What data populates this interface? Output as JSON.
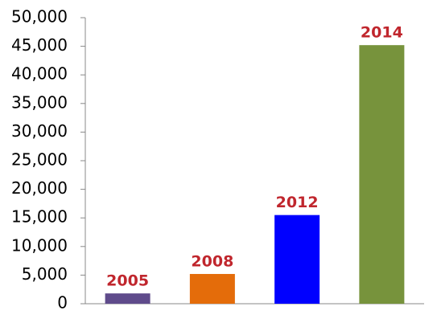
{
  "chart_data": {
    "type": "bar",
    "categories": [
      "2005",
      "2008",
      "2012",
      "2014"
    ],
    "values": [
      1800,
      5200,
      15500,
      45200
    ],
    "colors": [
      "#5f4b8b",
      "#e46c0a",
      "#0000ff",
      "#77933c"
    ],
    "ylim": [
      0,
      50000
    ],
    "yticks": [
      0,
      {
        "value": 5000,
        "label": "5,000"
      },
      {
        "value": 10000,
        "label": "10,000"
      },
      {
        "value": 15000,
        "label": "15,000"
      },
      {
        "value": 20000,
        "label": "20,000"
      },
      {
        "value": 25000,
        "label": "25,000"
      },
      {
        "value": 30000,
        "label": "30,000"
      },
      {
        "value": 35000,
        "label": "35,000"
      },
      {
        "value": 40000,
        "label": "40,000"
      },
      {
        "value": 45000,
        "label": "45,000"
      },
      {
        "value": 50000,
        "label": "50,000"
      }
    ],
    "grid": false
  }
}
